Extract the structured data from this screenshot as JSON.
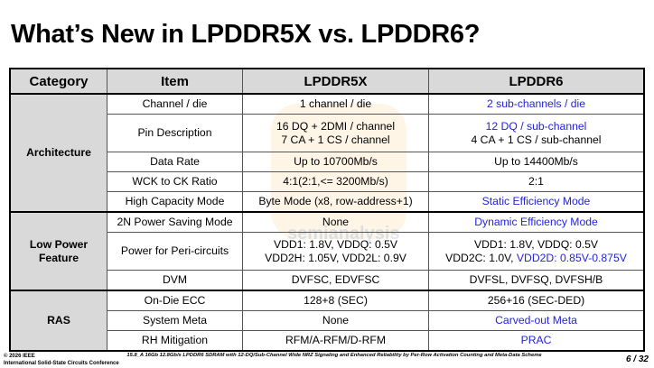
{
  "title": "What’s New in LPDDR5X vs. LPDDR6?",
  "table": {
    "headers": [
      "Category",
      "Item",
      "LPDDR5X",
      "LPDDR6"
    ],
    "groups": [
      {
        "category": "Architecture",
        "rows": [
          {
            "item": "Channel / die",
            "lpddr5x": [
              "1 channel / die"
            ],
            "lpddr6": [
              {
                "text": "2 sub-channels / die",
                "blue": true
              }
            ]
          },
          {
            "item": "Pin Description",
            "lpddr5x": [
              "16 DQ + 2DMI / channel",
              "7 CA + 1 CS / channel"
            ],
            "lpddr6": [
              {
                "text": "12 DQ / sub-channel",
                "blue": true
              },
              {
                "text": "4 CA + 1 CS / sub-channel",
                "blue": false
              }
            ]
          },
          {
            "item": "Data Rate",
            "lpddr5x": [
              "Up to 10700Mb/s"
            ],
            "lpddr6": [
              {
                "text": "Up to 14400Mb/s",
                "blue": false
              }
            ]
          },
          {
            "item": "WCK to CK Ratio",
            "lpddr5x": [
              "4:1(2:1,<= 3200Mb/s)"
            ],
            "lpddr6": [
              {
                "text": "2:1",
                "blue": false
              }
            ]
          },
          {
            "item": "High Capacity Mode",
            "lpddr5x": [
              "Byte Mode (x8, row-address+1)"
            ],
            "lpddr6": [
              {
                "text": "Static Efficiency Mode",
                "blue": true
              }
            ]
          }
        ]
      },
      {
        "category": "Low Power Feature",
        "rows": [
          {
            "item": "2N Power Saving Mode",
            "lpddr5x": [
              "None"
            ],
            "lpddr6": [
              {
                "text": "Dynamic Efficiency Mode",
                "blue": true
              }
            ]
          },
          {
            "item": "Power for Peri-circuits",
            "lpddr5x": [
              "VDD1: 1.8V, VDDQ: 0.5V",
              "VDD2H: 1.05V, VDD2L: 0.9V"
            ],
            "lpddr6": [
              {
                "text": "VDD1: 1.8V, VDDQ: 0.5V",
                "blue": false
              },
              {
                "text": "VDD2C: 1.0V, ",
                "blue": false,
                "suffix": "VDD2D: 0.85V-0.875V"
              }
            ]
          },
          {
            "item": "DVM",
            "lpddr5x": [
              "DVFSC, EDVFSC"
            ],
            "lpddr6": [
              {
                "text": "DVFSL, DVFSQ, DVFSH/B",
                "blue": false
              }
            ]
          }
        ]
      },
      {
        "category": "RAS",
        "rows": [
          {
            "item": "On-Die ECC",
            "lpddr5x": [
              "128+8 (SEC)"
            ],
            "lpddr6": [
              {
                "text": "256+16 (SEC-DED)",
                "blue": false
              }
            ]
          },
          {
            "item": "System Meta",
            "lpddr5x": [
              "None"
            ],
            "lpddr6": [
              {
                "text": "Carved-out Meta",
                "blue": true
              }
            ]
          },
          {
            "item": "RH Mitigation",
            "lpddr5x": [
              "RFM/A-RFM/D-RFM"
            ],
            "lpddr6": [
              {
                "text": "PRAC",
                "blue": true
              }
            ]
          }
        ]
      }
    ]
  },
  "watermark": "semianalysis",
  "footer": {
    "copyright": "© 2026 IEEE",
    "conference": "International Solid-State Circuits Conference",
    "paper": "15.8_A 16Gb 12.8Gb/s LPDDR6 SDRAM with 12-DQ/Sub-Channel Wide NRZ Signaling and Enhanced Reliability by Per-Row Activation Counting and Meta-Data Scheme",
    "page": "6 / 32"
  },
  "colors": {
    "highlight_text": "#2323e0",
    "header_bg": "#d9d9d9"
  }
}
